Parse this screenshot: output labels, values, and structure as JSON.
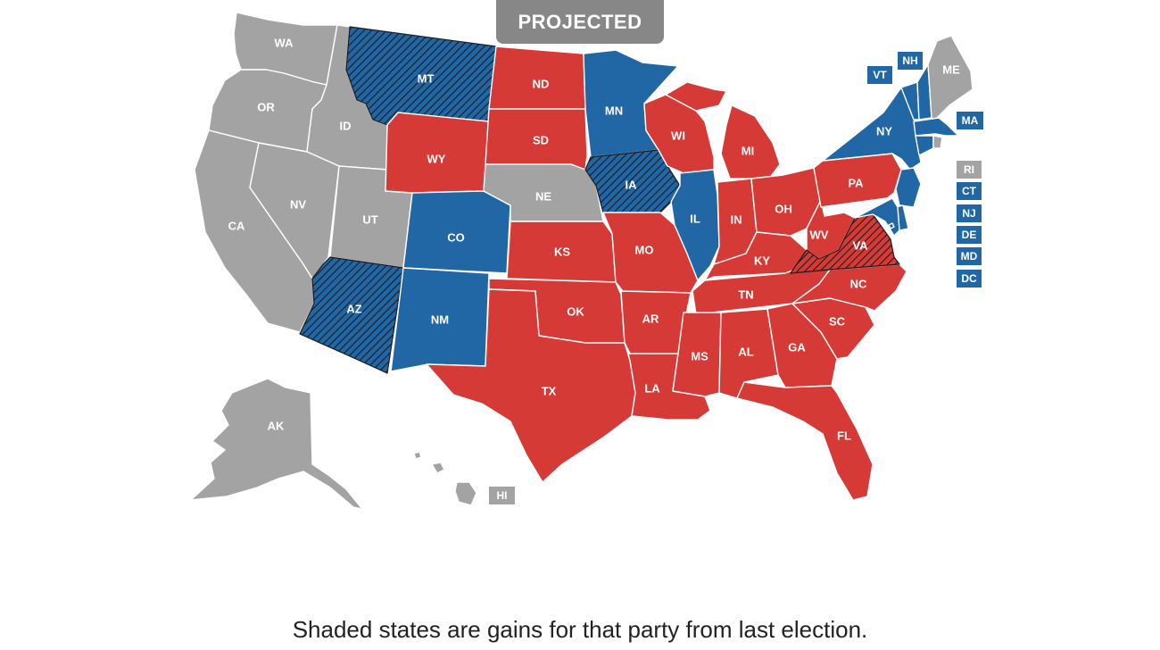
{
  "badge": "PROJECTED",
  "caption": "Shaded states are gains for that party from last election.",
  "colors": {
    "dem": "#2166a5",
    "rep": "#d63a36",
    "none": "#a3a3a3",
    "hatch": "#1b1b1b"
  },
  "states": [
    {
      "abbr": "WA",
      "status": "none",
      "gain": false
    },
    {
      "abbr": "OR",
      "status": "none",
      "gain": false
    },
    {
      "abbr": "CA",
      "status": "none",
      "gain": false
    },
    {
      "abbr": "ID",
      "status": "none",
      "gain": false
    },
    {
      "abbr": "NV",
      "status": "none",
      "gain": false
    },
    {
      "abbr": "UT",
      "status": "none",
      "gain": false
    },
    {
      "abbr": "MT",
      "status": "dem",
      "gain": true
    },
    {
      "abbr": "WY",
      "status": "rep",
      "gain": false
    },
    {
      "abbr": "CO",
      "status": "dem",
      "gain": false
    },
    {
      "abbr": "AZ",
      "status": "dem",
      "gain": true
    },
    {
      "abbr": "NM",
      "status": "dem",
      "gain": false
    },
    {
      "abbr": "ND",
      "status": "rep",
      "gain": false
    },
    {
      "abbr": "SD",
      "status": "rep",
      "gain": false
    },
    {
      "abbr": "NE",
      "status": "none",
      "gain": false
    },
    {
      "abbr": "KS",
      "status": "rep",
      "gain": false
    },
    {
      "abbr": "OK",
      "status": "rep",
      "gain": false
    },
    {
      "abbr": "TX",
      "status": "rep",
      "gain": false
    },
    {
      "abbr": "MN",
      "status": "dem",
      "gain": false
    },
    {
      "abbr": "IA",
      "status": "dem",
      "gain": true
    },
    {
      "abbr": "MO",
      "status": "rep",
      "gain": false
    },
    {
      "abbr": "AR",
      "status": "rep",
      "gain": false
    },
    {
      "abbr": "LA",
      "status": "rep",
      "gain": false
    },
    {
      "abbr": "WI",
      "status": "rep",
      "gain": false
    },
    {
      "abbr": "IL",
      "status": "dem",
      "gain": false
    },
    {
      "abbr": "MI",
      "status": "rep",
      "gain": false
    },
    {
      "abbr": "IN",
      "status": "rep",
      "gain": false
    },
    {
      "abbr": "OH",
      "status": "rep",
      "gain": false
    },
    {
      "abbr": "KY",
      "status": "rep",
      "gain": false
    },
    {
      "abbr": "TN",
      "status": "rep",
      "gain": false
    },
    {
      "abbr": "MS",
      "status": "rep",
      "gain": false
    },
    {
      "abbr": "AL",
      "status": "rep",
      "gain": false
    },
    {
      "abbr": "GA",
      "status": "rep",
      "gain": false
    },
    {
      "abbr": "FL",
      "status": "rep",
      "gain": false
    },
    {
      "abbr": "SC",
      "status": "rep",
      "gain": false
    },
    {
      "abbr": "NC",
      "status": "rep",
      "gain": false
    },
    {
      "abbr": "VA",
      "status": "rep",
      "gain": true
    },
    {
      "abbr": "WV",
      "status": "rep",
      "gain": false
    },
    {
      "abbr": "PA",
      "status": "rep",
      "gain": false
    },
    {
      "abbr": "NY",
      "status": "dem",
      "gain": false
    },
    {
      "abbr": "ME",
      "status": "none",
      "gain": false
    },
    {
      "abbr": "AK",
      "status": "none",
      "gain": false
    },
    {
      "abbr": "HI",
      "status": "none",
      "gain": false
    },
    {
      "abbr": "VT",
      "status": "dem",
      "gain": false
    },
    {
      "abbr": "NH",
      "status": "dem",
      "gain": false
    },
    {
      "abbr": "MA",
      "status": "dem",
      "gain": false
    },
    {
      "abbr": "RI",
      "status": "none",
      "gain": false
    },
    {
      "abbr": "CT",
      "status": "dem",
      "gain": false
    },
    {
      "abbr": "NJ",
      "status": "dem",
      "gain": false
    },
    {
      "abbr": "DE",
      "status": "dem",
      "gain": false
    },
    {
      "abbr": "MD",
      "status": "dem",
      "gain": false
    },
    {
      "abbr": "DC",
      "status": "dem",
      "gain": false
    }
  ]
}
